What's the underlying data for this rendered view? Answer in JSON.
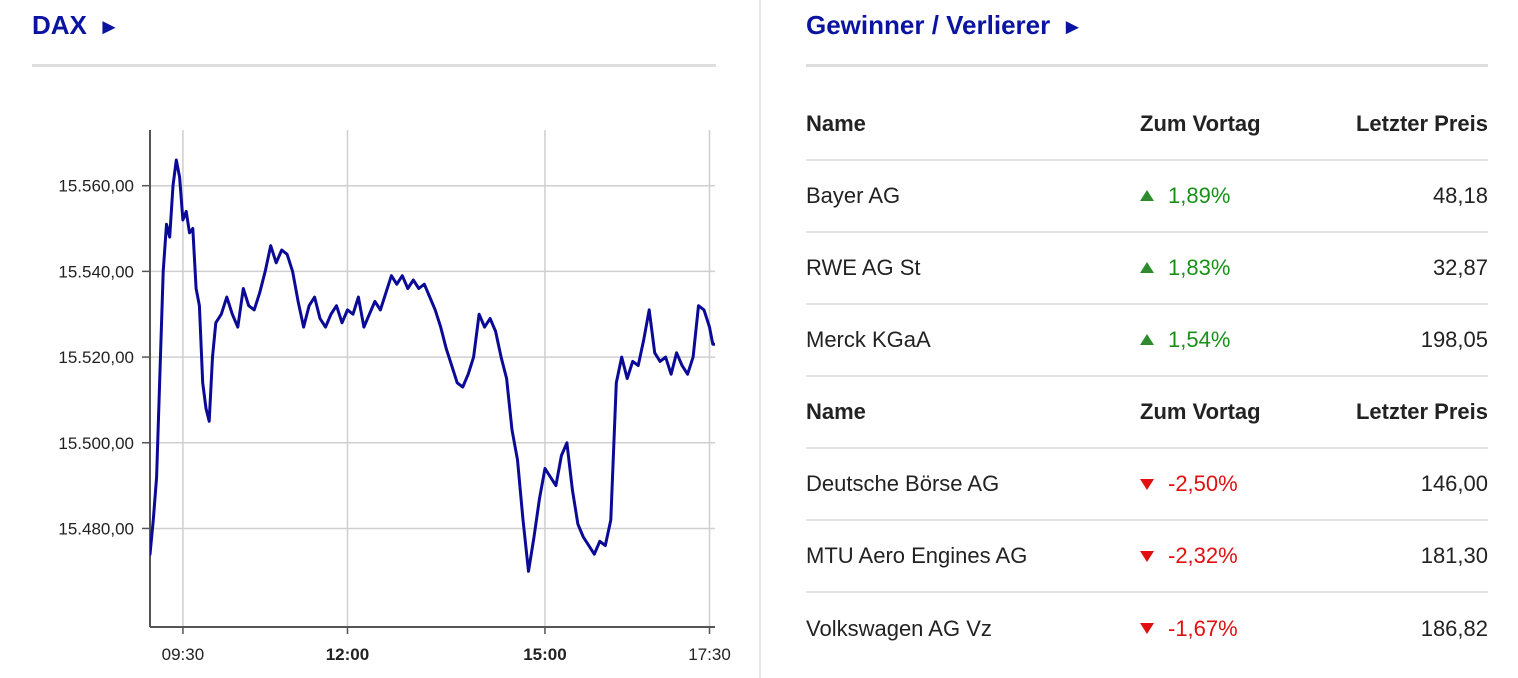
{
  "dax_panel": {
    "title": "DAX",
    "arrow": "►"
  },
  "movers_panel": {
    "title": "Gewinner / Verlierer",
    "arrow": "►"
  },
  "chart_data": {
    "type": "line",
    "title": "",
    "xlabel": "",
    "ylabel": "",
    "y_ticks": [
      "15.560,00",
      "15.540,00",
      "15.520,00",
      "15.500,00",
      "15.480,00"
    ],
    "y_tick_values": [
      15560,
      15540,
      15520,
      15500,
      15480
    ],
    "ylim": [
      15457,
      15573
    ],
    "x_ticks": [
      "09:30",
      "12:00",
      "15:00",
      "17:30"
    ],
    "x_tick_bold": [
      false,
      true,
      true,
      false
    ],
    "x_range": [
      "09:00",
      "17:35"
    ],
    "grid": true,
    "series_color": "#0a0a96",
    "series": [
      {
        "values": [
          [
            "09:00",
            15474
          ],
          [
            "09:03",
            15482
          ],
          [
            "09:06",
            15492
          ],
          [
            "09:09",
            15516
          ],
          [
            "09:12",
            15540
          ],
          [
            "09:15",
            15551
          ],
          [
            "09:18",
            15548
          ],
          [
            "09:21",
            15560
          ],
          [
            "09:24",
            15566
          ],
          [
            "09:27",
            15562
          ],
          [
            "09:30",
            15552
          ],
          [
            "09:33",
            15554
          ],
          [
            "09:36",
            15549
          ],
          [
            "09:39",
            15550
          ],
          [
            "09:42",
            15536
          ],
          [
            "09:45",
            15532
          ],
          [
            "09:48",
            15514
          ],
          [
            "09:51",
            15508
          ],
          [
            "09:54",
            15505
          ],
          [
            "09:57",
            15520
          ],
          [
            "10:00",
            15528
          ],
          [
            "10:05",
            15530
          ],
          [
            "10:10",
            15534
          ],
          [
            "10:15",
            15530
          ],
          [
            "10:20",
            15527
          ],
          [
            "10:25",
            15536
          ],
          [
            "10:30",
            15532
          ],
          [
            "10:35",
            15531
          ],
          [
            "10:40",
            15535
          ],
          [
            "10:45",
            15540
          ],
          [
            "10:50",
            15546
          ],
          [
            "10:55",
            15542
          ],
          [
            "11:00",
            15545
          ],
          [
            "11:05",
            15544
          ],
          [
            "11:10",
            15540
          ],
          [
            "11:15",
            15533
          ],
          [
            "11:20",
            15527
          ],
          [
            "11:25",
            15532
          ],
          [
            "11:30",
            15534
          ],
          [
            "11:35",
            15529
          ],
          [
            "11:40",
            15527
          ],
          [
            "11:45",
            15530
          ],
          [
            "11:50",
            15532
          ],
          [
            "11:55",
            15528
          ],
          [
            "12:00",
            15531
          ],
          [
            "12:05",
            15530
          ],
          [
            "12:10",
            15534
          ],
          [
            "12:15",
            15527
          ],
          [
            "12:20",
            15530
          ],
          [
            "12:25",
            15533
          ],
          [
            "12:30",
            15531
          ],
          [
            "12:35",
            15535
          ],
          [
            "12:40",
            15539
          ],
          [
            "12:45",
            15537
          ],
          [
            "12:50",
            15539
          ],
          [
            "12:55",
            15536
          ],
          [
            "13:00",
            15538
          ],
          [
            "13:05",
            15536
          ],
          [
            "13:10",
            15537
          ],
          [
            "13:15",
            15534
          ],
          [
            "13:20",
            15531
          ],
          [
            "13:25",
            15527
          ],
          [
            "13:30",
            15522
          ],
          [
            "13:35",
            15518
          ],
          [
            "13:40",
            15514
          ],
          [
            "13:45",
            15513
          ],
          [
            "13:50",
            15516
          ],
          [
            "13:55",
            15520
          ],
          [
            "14:00",
            15530
          ],
          [
            "14:05",
            15527
          ],
          [
            "14:10",
            15529
          ],
          [
            "14:15",
            15526
          ],
          [
            "14:20",
            15520
          ],
          [
            "14:25",
            15515
          ],
          [
            "14:30",
            15503
          ],
          [
            "14:35",
            15496
          ],
          [
            "14:40",
            15482
          ],
          [
            "14:45",
            15470
          ],
          [
            "14:50",
            15478
          ],
          [
            "14:55",
            15487
          ],
          [
            "15:00",
            15494
          ],
          [
            "15:05",
            15492
          ],
          [
            "15:10",
            15490
          ],
          [
            "15:15",
            15497
          ],
          [
            "15:20",
            15500
          ],
          [
            "15:25",
            15489
          ],
          [
            "15:30",
            15481
          ],
          [
            "15:35",
            15478
          ],
          [
            "15:40",
            15476
          ],
          [
            "15:45",
            15474
          ],
          [
            "15:50",
            15477
          ],
          [
            "15:55",
            15476
          ],
          [
            "16:00",
            15482
          ],
          [
            "16:05",
            15514
          ],
          [
            "16:10",
            15520
          ],
          [
            "16:15",
            15515
          ],
          [
            "16:20",
            15519
          ],
          [
            "16:25",
            15518
          ],
          [
            "16:30",
            15524
          ],
          [
            "16:35",
            15531
          ],
          [
            "16:40",
            15521
          ],
          [
            "16:45",
            15519
          ],
          [
            "16:50",
            15520
          ],
          [
            "16:55",
            15516
          ],
          [
            "17:00",
            15521
          ],
          [
            "17:05",
            15518
          ],
          [
            "17:10",
            15516
          ],
          [
            "17:15",
            15520
          ],
          [
            "17:20",
            15532
          ],
          [
            "17:25",
            15531
          ],
          [
            "17:30",
            15527
          ],
          [
            "17:33",
            15523
          ],
          [
            "17:35",
            15523
          ]
        ]
      }
    ]
  },
  "movers_table": {
    "headers": {
      "name": "Name",
      "change": "Zum Vortag",
      "price": "Letzter Preis"
    },
    "winners": [
      {
        "name": "Bayer AG",
        "change": "1,89%",
        "price": "48,18",
        "direction": "up"
      },
      {
        "name": "RWE AG St",
        "change": "1,83%",
        "price": "32,87",
        "direction": "up"
      },
      {
        "name": "Merck KGaA",
        "change": "1,54%",
        "price": "198,05",
        "direction": "up"
      }
    ],
    "losers": [
      {
        "name": "Deutsche Börse AG",
        "change": "-2,50%",
        "price": "146,00",
        "direction": "down"
      },
      {
        "name": "MTU Aero Engines AG",
        "change": "-2,32%",
        "price": "181,30",
        "direction": "down"
      },
      {
        "name": "Volkswagen AG Vz",
        "change": "-1,67%",
        "price": "186,82",
        "direction": "down"
      }
    ]
  }
}
